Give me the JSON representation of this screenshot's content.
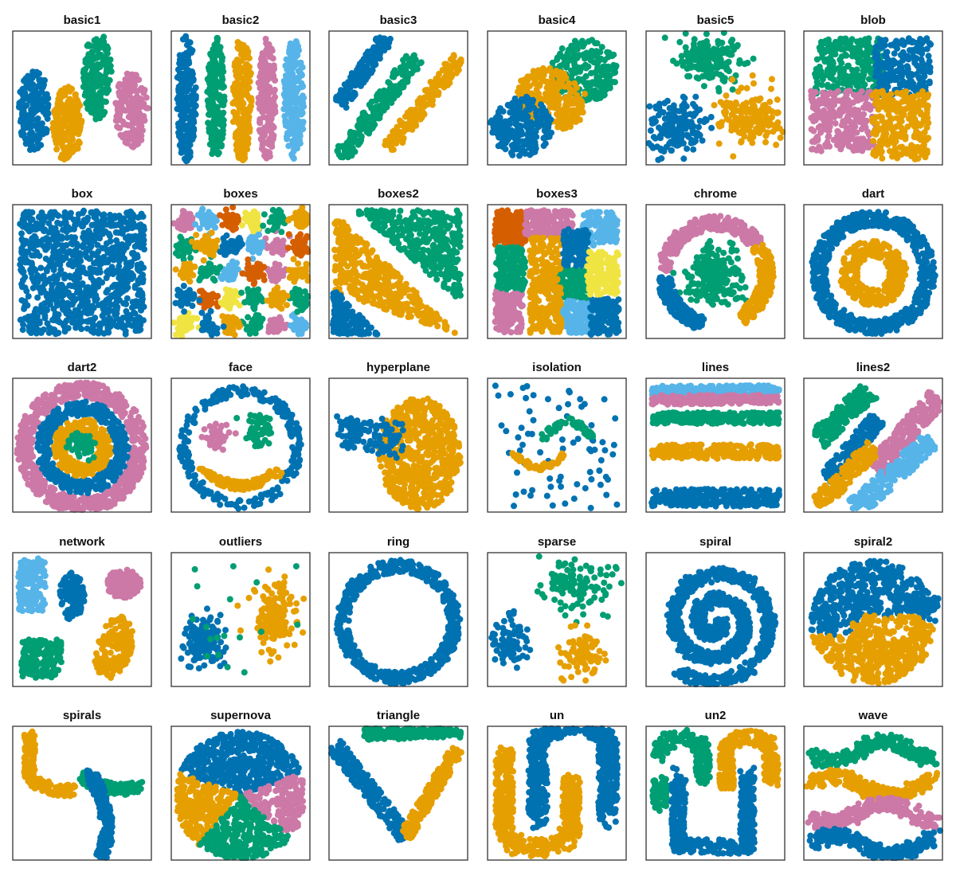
{
  "palette": {
    "blue": "#0072B2",
    "orange": "#E69F00",
    "green": "#009E73",
    "pink": "#CC79A7",
    "skyblue": "#56B4E9",
    "vermillion": "#D55E00",
    "yellow": "#F0E442"
  },
  "chart_data": [
    {
      "title": "basic1",
      "type": "scatter",
      "clusters": [
        "blue",
        "orange",
        "green",
        "pink"
      ],
      "grid": false
    },
    {
      "title": "basic2",
      "type": "scatter",
      "clusters": [
        "blue",
        "green",
        "orange",
        "pink",
        "skyblue"
      ],
      "grid": false
    },
    {
      "title": "basic3",
      "type": "scatter",
      "clusters": [
        "blue",
        "green",
        "orange"
      ],
      "grid": false
    },
    {
      "title": "basic4",
      "type": "scatter",
      "clusters": [
        "green",
        "orange",
        "blue"
      ],
      "grid": false
    },
    {
      "title": "basic5",
      "type": "scatter",
      "clusters": [
        "green",
        "blue",
        "orange"
      ],
      "grid": false
    },
    {
      "title": "blob",
      "type": "scatter",
      "clusters": [
        "green",
        "blue",
        "pink",
        "orange"
      ],
      "grid": false
    },
    {
      "title": "box",
      "type": "scatter",
      "clusters": [
        "blue"
      ],
      "grid": false
    },
    {
      "title": "boxes",
      "type": "scatter",
      "clusters": [
        "pink",
        "skyblue",
        "vermillion",
        "yellow",
        "green",
        "orange",
        "blue"
      ],
      "grid": false
    },
    {
      "title": "boxes2",
      "type": "scatter",
      "clusters": [
        "green",
        "orange",
        "blue"
      ],
      "grid": false
    },
    {
      "title": "boxes3",
      "type": "scatter",
      "clusters": [
        "vermillion",
        "pink",
        "skyblue",
        "green",
        "orange",
        "blue",
        "yellow"
      ],
      "grid": false
    },
    {
      "title": "chrome",
      "type": "scatter",
      "clusters": [
        "pink",
        "green",
        "orange",
        "blue"
      ],
      "grid": false
    },
    {
      "title": "dart",
      "type": "scatter",
      "clusters": [
        "blue",
        "orange"
      ],
      "grid": false
    },
    {
      "title": "dart2",
      "type": "scatter",
      "clusters": [
        "pink",
        "blue",
        "orange",
        "green"
      ],
      "grid": false
    },
    {
      "title": "face",
      "type": "scatter",
      "clusters": [
        "blue",
        "pink",
        "green",
        "orange"
      ],
      "grid": false
    },
    {
      "title": "hyperplane",
      "type": "scatter",
      "clusters": [
        "orange",
        "blue"
      ],
      "grid": false
    },
    {
      "title": "isolation",
      "type": "scatter",
      "clusters": [
        "blue",
        "orange",
        "green"
      ],
      "grid": false
    },
    {
      "title": "lines",
      "type": "scatter",
      "clusters": [
        "skyblue",
        "pink",
        "green",
        "orange",
        "blue"
      ],
      "grid": false
    },
    {
      "title": "lines2",
      "type": "scatter",
      "clusters": [
        "green",
        "blue",
        "pink",
        "orange",
        "skyblue"
      ],
      "grid": false
    },
    {
      "title": "network",
      "type": "scatter",
      "clusters": [
        "skyblue",
        "blue",
        "pink",
        "green",
        "orange"
      ],
      "grid": false
    },
    {
      "title": "outliers",
      "type": "scatter",
      "clusters": [
        "blue",
        "orange",
        "green"
      ],
      "grid": false
    },
    {
      "title": "ring",
      "type": "scatter",
      "clusters": [
        "blue"
      ],
      "grid": false
    },
    {
      "title": "sparse",
      "type": "scatter",
      "clusters": [
        "green",
        "blue",
        "orange"
      ],
      "grid": false
    },
    {
      "title": "spiral",
      "type": "scatter",
      "clusters": [
        "blue"
      ],
      "grid": false
    },
    {
      "title": "spiral2",
      "type": "scatter",
      "clusters": [
        "blue",
        "orange"
      ],
      "grid": false
    },
    {
      "title": "spirals",
      "type": "scatter",
      "clusters": [
        "orange",
        "green",
        "blue"
      ],
      "grid": false
    },
    {
      "title": "supernova",
      "type": "scatter",
      "clusters": [
        "blue",
        "orange",
        "pink",
        "green"
      ],
      "grid": false
    },
    {
      "title": "triangle",
      "type": "scatter",
      "clusters": [
        "green",
        "blue",
        "orange"
      ],
      "grid": false
    },
    {
      "title": "un",
      "type": "scatter",
      "clusters": [
        "blue",
        "orange"
      ],
      "grid": false
    },
    {
      "title": "un2",
      "type": "scatter",
      "clusters": [
        "green",
        "orange",
        "blue"
      ],
      "grid": false
    },
    {
      "title": "wave",
      "type": "scatter",
      "clusters": [
        "green",
        "orange",
        "pink",
        "blue"
      ],
      "grid": false
    }
  ]
}
